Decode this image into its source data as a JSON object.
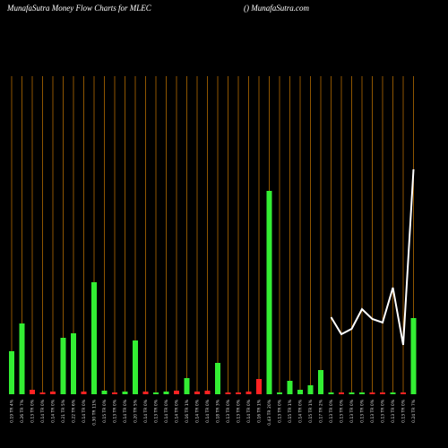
{
  "chart_data": {
    "type": "bar",
    "title": "MunafaSutra  Money Flow  Charts for MLEC",
    "subtitle": "() MunafaSutra.com",
    "categories": [
      "0.19 TR 4%",
      "0.26 TR 7%",
      "0.13 TR 0%",
      "0.14 TR 0%",
      "0.14 TR 0%",
      "0.21 TR 5%",
      "0.22 TR 6%",
      "0.14 TR 0%",
      "0.30 TR 11%",
      "0.15 TR 0%",
      "0.13 TR 0%",
      "0.14 TR 0%",
      "0.20 TR 5%",
      "0.14 TR 0%",
      "0.13 TR 0%",
      "0.14 TR 0%",
      "0.14 TR 0%",
      "0.16 TR 1%",
      "0.14 TR 0%",
      "0.14 TR 0%",
      "0.18 TR 3%",
      "0.13 TR 0%",
      "0.13 TR 0%",
      "0.14 TR 0%",
      "0.16 TR 1%",
      "0.43 TR 20%",
      "0.13 TR 0%",
      "0.15 TR 1%",
      "0.14 TR 0%",
      "0.15 TR 1%",
      "0.17 TR 2%",
      "0.13 TR 0%",
      "0.13 TR 0%",
      "0.13 TR 0%",
      "0.13 TR 0%",
      "0.13 TR 0%",
      "0.13 TR 0%",
      "0.13 TR 0%",
      "0.13 TR 0%",
      "0.24 TR 7%"
    ],
    "values": [
      48,
      79,
      5,
      2,
      3,
      63,
      68,
      3,
      125,
      4,
      2,
      3,
      60,
      3,
      2,
      3,
      4,
      18,
      3,
      4,
      35,
      2,
      2,
      3,
      17,
      227,
      2,
      15,
      5,
      10,
      27,
      2,
      2,
      2,
      2,
      2,
      2,
      2,
      2,
      85
    ],
    "colors": [
      "#33ee33",
      "#33ee33",
      "#ff2222",
      "#ff2222",
      "#ff2222",
      "#33ee33",
      "#33ee33",
      "#ff2222",
      "#33ee33",
      "#33ee33",
      "#ff2222",
      "#33ee33",
      "#33ee33",
      "#ff2222",
      "#33ee33",
      "#33ee33",
      "#ff2222",
      "#33ee33",
      "#ff2222",
      "#ff2222",
      "#33ee33",
      "#ff2222",
      "#ff2222",
      "#ff2222",
      "#ff2222",
      "#33ee33",
      "#33ee33",
      "#33ee33",
      "#33ee33",
      "#33ee33",
      "#33ee33",
      "#33ee33",
      "#ff2222",
      "#33ee33",
      "#33ee33",
      "#ff2222",
      "#ff2222",
      "#33ee33",
      "#ff2222",
      "#33ee33"
    ],
    "line": {
      "color": "#ffffff",
      "values": [
        null,
        null,
        null,
        null,
        null,
        null,
        null,
        null,
        null,
        null,
        null,
        null,
        null,
        null,
        null,
        null,
        null,
        null,
        null,
        null,
        null,
        null,
        null,
        null,
        null,
        null,
        null,
        null,
        null,
        null,
        null,
        86,
        67,
        73,
        95,
        84,
        80,
        119,
        55,
        251
      ]
    },
    "ylim": [
      0,
      360
    ],
    "grid_color": "#b36b00"
  }
}
